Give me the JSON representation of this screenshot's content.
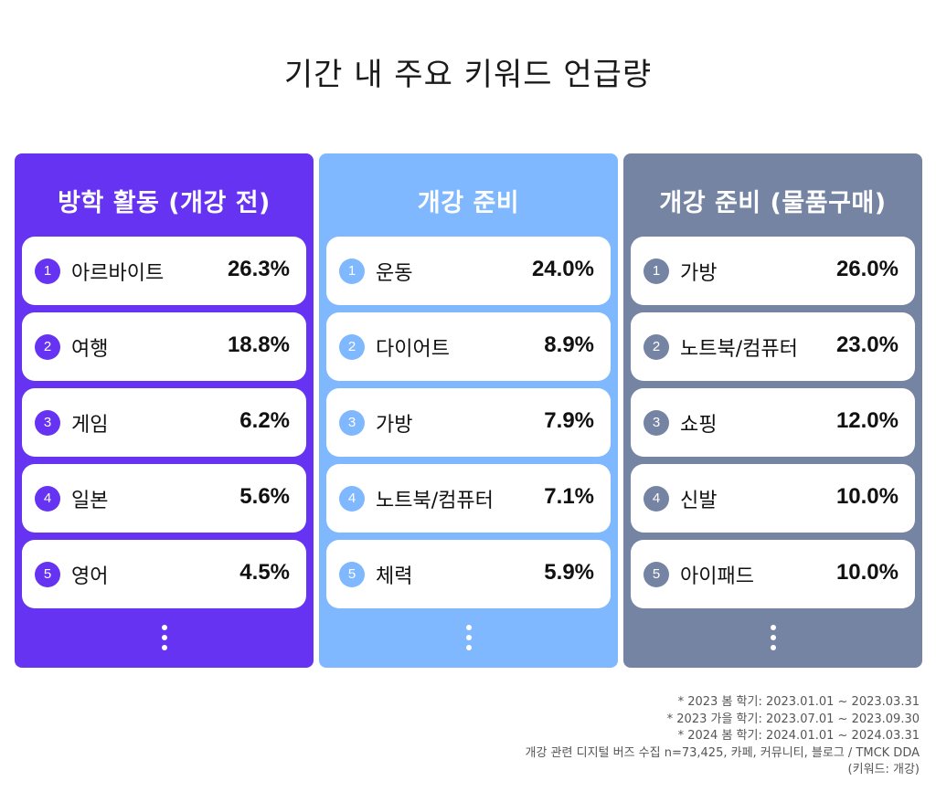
{
  "chart_data": {
    "type": "table",
    "title": "기간 내 주요 키워드 언급량",
    "panels": [
      {
        "title": "방학 활동 (개강 전)",
        "color": "#6633f2",
        "rows": [
          {
            "rank": "1",
            "keyword": "아르바이트",
            "value": 26.3,
            "label": "26.3%"
          },
          {
            "rank": "2",
            "keyword": "여행",
            "value": 18.8,
            "label": "18.8%"
          },
          {
            "rank": "3",
            "keyword": "게임",
            "value": 6.2,
            "label": "6.2%"
          },
          {
            "rank": "4",
            "keyword": "일본",
            "value": 5.6,
            "label": "5.6%"
          },
          {
            "rank": "5",
            "keyword": "영어",
            "value": 4.5,
            "label": "4.5%"
          }
        ]
      },
      {
        "title": "개강 준비",
        "color": "#7fb8ff",
        "rows": [
          {
            "rank": "1",
            "keyword": "운동",
            "value": 24.0,
            "label": "24.0%"
          },
          {
            "rank": "2",
            "keyword": "다이어트",
            "value": 8.9,
            "label": "8.9%"
          },
          {
            "rank": "3",
            "keyword": "가방",
            "value": 7.9,
            "label": "7.9%"
          },
          {
            "rank": "4",
            "keyword": "노트북/컴퓨터",
            "value": 7.1,
            "label": "7.1%"
          },
          {
            "rank": "5",
            "keyword": "체력",
            "value": 5.9,
            "label": "5.9%"
          }
        ]
      },
      {
        "title": "개강 준비 (물품구매)",
        "color": "#7684a3",
        "rows": [
          {
            "rank": "1",
            "keyword": "가방",
            "value": 26.0,
            "label": "26.0%"
          },
          {
            "rank": "2",
            "keyword": "노트북/컴퓨터",
            "value": 23.0,
            "label": "23.0%"
          },
          {
            "rank": "3",
            "keyword": "쇼핑",
            "value": 12.0,
            "label": "12.0%"
          },
          {
            "rank": "4",
            "keyword": "신발",
            "value": 10.0,
            "label": "10.0%"
          },
          {
            "rank": "5",
            "keyword": "아이패드",
            "value": 10.0,
            "label": "10.0%"
          }
        ]
      }
    ],
    "notes": [
      "* 2023 봄 학기: 2023.01.01 ~ 2023.03.31",
      "* 2023 가을 학기: 2023.07.01 ~ 2023.09.30",
      "* 2024 봄 학기: 2024.01.01 ~ 2024.03.31",
      "개강 관련 디지털 버즈 수집 n=73,425, 카페, 커뮤니티, 블로그 / TMCK DDA",
      "(키워드: 개강)"
    ]
  }
}
